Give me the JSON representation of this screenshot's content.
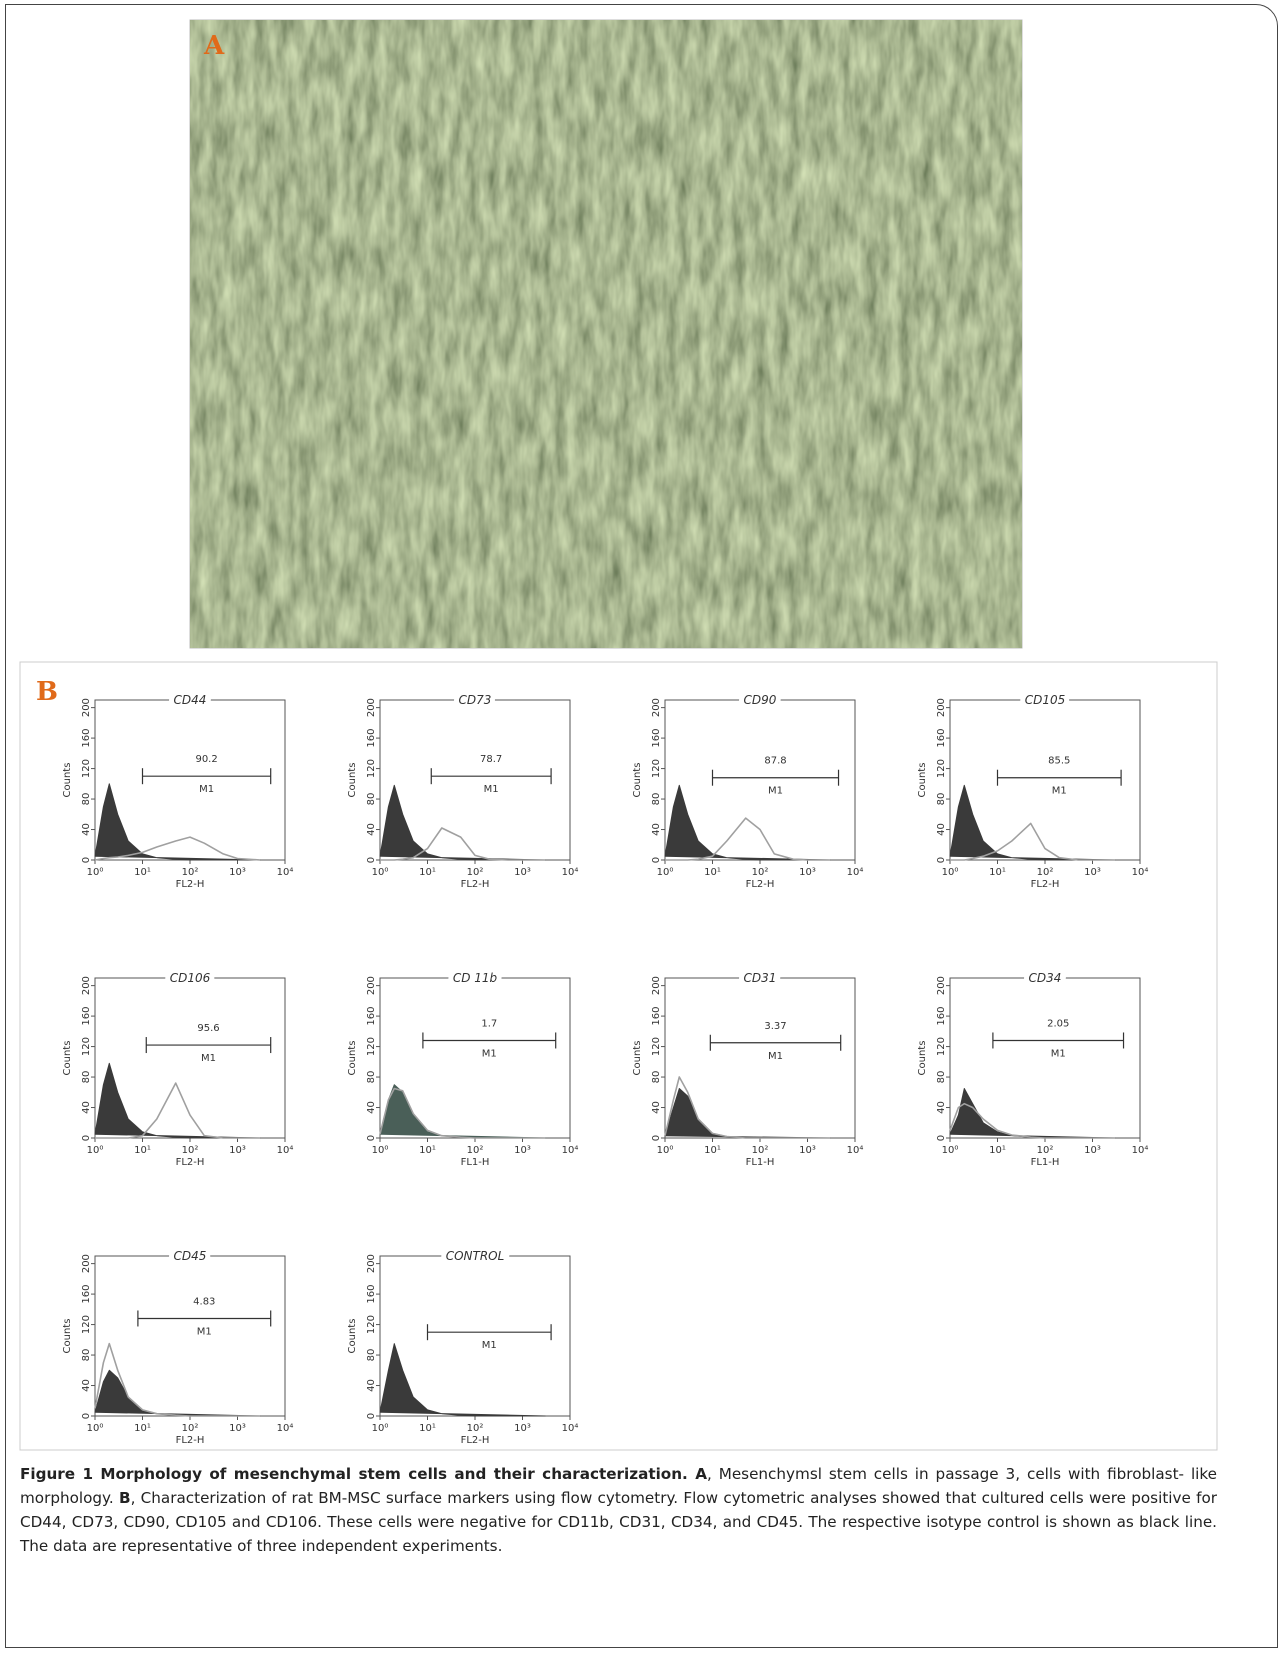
{
  "panel_a": {
    "label": "A"
  },
  "panel_b": {
    "label": "B"
  },
  "chart_data": [
    {
      "type": "line",
      "title": "CD44",
      "xlabel": "FL2-H",
      "ylabel": "Counts",
      "xscale": "log",
      "xlim": [
        1,
        10000
      ],
      "ylim": [
        0,
        210
      ],
      "xticks": [
        {
          "value": 1,
          "label": "10⁰"
        },
        {
          "value": 10,
          "label": "10¹"
        },
        {
          "value": 100,
          "label": "10²"
        },
        {
          "value": 1000,
          "label": "10³"
        },
        {
          "value": 10000,
          "label": "10⁴"
        }
      ],
      "yticks": [
        0,
        40,
        80,
        120,
        160,
        200
      ],
      "x": [
        1,
        1.5,
        2,
        3,
        5,
        10,
        20,
        50,
        100,
        200,
        500,
        1000,
        3000
      ],
      "series": [
        {
          "color": "#3a3a3a",
          "fill": true,
          "values": [
            5,
            70,
            100,
            60,
            25,
            8,
            3,
            1,
            0,
            0,
            0,
            0,
            0
          ]
        },
        {
          "color": "#a0a0a0",
          "fill": false,
          "values": [
            0,
            2,
            3,
            4,
            6,
            10,
            17,
            25,
            30,
            22,
            8,
            2,
            0
          ]
        }
      ],
      "gate": {
        "x": [
          10,
          5000
        ],
        "y": 110,
        "label": "M1",
        "value": 90.2
      }
    },
    {
      "type": "line",
      "title": "CD73",
      "xlabel": "FL2-H",
      "ylabel": "Counts",
      "xscale": "log",
      "xlim": [
        1,
        10000
      ],
      "ylim": [
        0,
        210
      ],
      "xticks": [
        {
          "value": 1,
          "label": "10⁰"
        },
        {
          "value": 10,
          "label": "10¹"
        },
        {
          "value": 100,
          "label": "10²"
        },
        {
          "value": 1000,
          "label": "10³"
        },
        {
          "value": 10000,
          "label": "10⁴"
        }
      ],
      "yticks": [
        0,
        40,
        80,
        120,
        160,
        200
      ],
      "x": [
        1,
        1.5,
        2,
        3,
        5,
        10,
        20,
        50,
        100,
        200,
        500,
        1000,
        3000
      ],
      "series": [
        {
          "color": "#3a3a3a",
          "fill": true,
          "values": [
            5,
            70,
            98,
            60,
            25,
            8,
            3,
            1,
            0,
            0,
            0,
            0,
            0
          ]
        },
        {
          "color": "#a0a0a0",
          "fill": false,
          "values": [
            0,
            0,
            0,
            1,
            3,
            15,
            42,
            30,
            6,
            1,
            0,
            0,
            0
          ]
        }
      ],
      "gate": {
        "x": [
          12,
          4000
        ],
        "y": 110,
        "label": "M1",
        "value": 78.7
      }
    },
    {
      "type": "line",
      "title": "CD90",
      "xlabel": "FL2-H",
      "ylabel": "Counts",
      "xscale": "log",
      "xlim": [
        1,
        10000
      ],
      "ylim": [
        0,
        210
      ],
      "xticks": [
        {
          "value": 1,
          "label": "10⁰"
        },
        {
          "value": 10,
          "label": "10¹"
        },
        {
          "value": 100,
          "label": "10²"
        },
        {
          "value": 1000,
          "label": "10³"
        },
        {
          "value": 10000,
          "label": "10⁴"
        }
      ],
      "yticks": [
        0,
        40,
        80,
        120,
        160,
        200
      ],
      "x": [
        1,
        1.5,
        2,
        3,
        5,
        10,
        20,
        50,
        100,
        200,
        500,
        1000,
        3000
      ],
      "series": [
        {
          "color": "#3a3a3a",
          "fill": true,
          "values": [
            5,
            70,
            98,
            60,
            25,
            8,
            3,
            1,
            0,
            0,
            0,
            0,
            0
          ]
        },
        {
          "color": "#a0a0a0",
          "fill": false,
          "values": [
            0,
            0,
            0,
            0,
            1,
            5,
            25,
            55,
            40,
            8,
            1,
            0,
            0
          ]
        }
      ],
      "gate": {
        "x": [
          10,
          4500
        ],
        "y": 108,
        "label": "M1",
        "value": 87.8
      }
    },
    {
      "type": "line",
      "title": "CD105",
      "xlabel": "FL2-H",
      "ylabel": "Counts",
      "xscale": "log",
      "xlim": [
        1,
        10000
      ],
      "ylim": [
        0,
        210
      ],
      "xticks": [
        {
          "value": 1,
          "label": "10⁰"
        },
        {
          "value": 10,
          "label": "10¹"
        },
        {
          "value": 100,
          "label": "10²"
        },
        {
          "value": 1000,
          "label": "10³"
        },
        {
          "value": 10000,
          "label": "10⁴"
        }
      ],
      "yticks": [
        0,
        40,
        80,
        120,
        160,
        200
      ],
      "x": [
        1,
        1.5,
        2,
        3,
        5,
        10,
        20,
        50,
        100,
        200,
        500,
        1000,
        3000
      ],
      "series": [
        {
          "color": "#3a3a3a",
          "fill": true,
          "values": [
            5,
            70,
            98,
            60,
            25,
            8,
            3,
            1,
            0,
            0,
            0,
            0,
            0
          ]
        },
        {
          "color": "#a0a0a0",
          "fill": false,
          "values": [
            0,
            0,
            0,
            2,
            5,
            12,
            25,
            48,
            15,
            3,
            0,
            0,
            0
          ]
        }
      ],
      "gate": {
        "x": [
          10,
          4000
        ],
        "y": 108,
        "label": "M1",
        "value": 85.5
      }
    },
    {
      "type": "line",
      "title": "CD106",
      "xlabel": "FL2-H",
      "ylabel": "Counts",
      "xscale": "log",
      "xlim": [
        1,
        10000
      ],
      "ylim": [
        0,
        210
      ],
      "xticks": [
        {
          "value": 1,
          "label": "10⁰"
        },
        {
          "value": 10,
          "label": "10¹"
        },
        {
          "value": 100,
          "label": "10²"
        },
        {
          "value": 1000,
          "label": "10³"
        },
        {
          "value": 10000,
          "label": "10⁴"
        }
      ],
      "yticks": [
        0,
        40,
        80,
        120,
        160,
        200
      ],
      "x": [
        1,
        1.5,
        2,
        3,
        5,
        10,
        20,
        50,
        100,
        200,
        500,
        1000,
        3000
      ],
      "series": [
        {
          "color": "#3a3a3a",
          "fill": true,
          "values": [
            5,
            70,
            98,
            60,
            25,
            8,
            3,
            1,
            0,
            0,
            0,
            0,
            0
          ]
        },
        {
          "color": "#a0a0a0",
          "fill": false,
          "values": [
            0,
            0,
            0,
            0,
            0,
            3,
            25,
            72,
            30,
            3,
            0,
            0,
            0
          ]
        }
      ],
      "gate": {
        "x": [
          12,
          5000
        ],
        "y": 122,
        "label": "M1",
        "value": 95.6
      }
    },
    {
      "type": "line",
      "title": "CD 11b",
      "xlabel": "FL1-H",
      "ylabel": "Counts",
      "xscale": "log",
      "xlim": [
        1,
        10000
      ],
      "ylim": [
        0,
        210
      ],
      "xticks": [
        {
          "value": 1,
          "label": "10⁰"
        },
        {
          "value": 10,
          "label": "10¹"
        },
        {
          "value": 100,
          "label": "10²"
        },
        {
          "value": 1000,
          "label": "10³"
        },
        {
          "value": 10000,
          "label": "10⁴"
        }
      ],
      "yticks": [
        0,
        40,
        80,
        120,
        160,
        200
      ],
      "x": [
        1,
        1.5,
        2,
        3,
        5,
        10,
        20,
        50,
        100,
        200,
        500,
        1000,
        3000
      ],
      "series": [
        {
          "color": "#4a5f58",
          "fill": true,
          "values": [
            5,
            50,
            70,
            60,
            30,
            8,
            3,
            1,
            0,
            0,
            0,
            0,
            0
          ]
        },
        {
          "color": "#a0a0a0",
          "fill": false,
          "values": [
            5,
            50,
            65,
            62,
            32,
            10,
            3,
            1,
            0,
            0,
            0,
            0,
            0
          ]
        }
      ],
      "gate": {
        "x": [
          8,
          5000
        ],
        "y": 128,
        "label": "M1",
        "value": 1.7
      }
    },
    {
      "type": "line",
      "title": "CD31",
      "xlabel": "FL1-H",
      "ylabel": "Counts",
      "xscale": "log",
      "xlim": [
        1,
        10000
      ],
      "ylim": [
        0,
        210
      ],
      "xticks": [
        {
          "value": 1,
          "label": "10⁰"
        },
        {
          "value": 10,
          "label": "10¹"
        },
        {
          "value": 100,
          "label": "10²"
        },
        {
          "value": 1000,
          "label": "10³"
        },
        {
          "value": 10000,
          "label": "10⁴"
        }
      ],
      "yticks": [
        0,
        40,
        80,
        120,
        160,
        200
      ],
      "x": [
        1,
        1.5,
        2,
        3,
        5,
        10,
        20,
        50,
        100,
        200,
        500,
        1000,
        3000
      ],
      "series": [
        {
          "color": "#3a3a3a",
          "fill": true,
          "values": [
            3,
            40,
            65,
            55,
            25,
            6,
            2,
            0,
            0,
            0,
            0,
            0,
            0
          ]
        },
        {
          "color": "#a0a0a0",
          "fill": false,
          "values": [
            3,
            50,
            80,
            60,
            25,
            6,
            2,
            0,
            0,
            0,
            0,
            0,
            0
          ]
        }
      ],
      "gate": {
        "x": [
          9,
          5000
        ],
        "y": 125,
        "label": "M1",
        "value": 3.37
      }
    },
    {
      "type": "line",
      "title": "CD34",
      "xlabel": "FL1-H",
      "ylabel": "Counts",
      "xscale": "log",
      "xlim": [
        1,
        10000
      ],
      "ylim": [
        0,
        210
      ],
      "xticks": [
        {
          "value": 1,
          "label": "10⁰"
        },
        {
          "value": 10,
          "label": "10¹"
        },
        {
          "value": 100,
          "label": "10²"
        },
        {
          "value": 1000,
          "label": "10³"
        },
        {
          "value": 10000,
          "label": "10⁴"
        }
      ],
      "yticks": [
        0,
        40,
        80,
        120,
        160,
        200
      ],
      "x": [
        1,
        1.5,
        2,
        3,
        5,
        10,
        20,
        50,
        100,
        200,
        500,
        1000,
        3000
      ],
      "series": [
        {
          "color": "#3a3a3a",
          "fill": true,
          "values": [
            5,
            30,
            65,
            45,
            20,
            8,
            3,
            1,
            0,
            0,
            0,
            0,
            0
          ]
        },
        {
          "color": "#a0a0a0",
          "fill": false,
          "values": [
            10,
            40,
            45,
            40,
            25,
            10,
            4,
            1,
            0,
            0,
            0,
            0,
            0
          ]
        }
      ],
      "gate": {
        "x": [
          8,
          4500
        ],
        "y": 128,
        "label": "M1",
        "value": 2.05
      }
    },
    {
      "type": "line",
      "title": "CD45",
      "xlabel": "FL2-H",
      "ylabel": "Counts",
      "xscale": "log",
      "xlim": [
        1,
        10000
      ],
      "ylim": [
        0,
        210
      ],
      "xticks": [
        {
          "value": 1,
          "label": "10⁰"
        },
        {
          "value": 10,
          "label": "10¹"
        },
        {
          "value": 100,
          "label": "10²"
        },
        {
          "value": 1000,
          "label": "10³"
        },
        {
          "value": 10000,
          "label": "10⁴"
        }
      ],
      "yticks": [
        0,
        40,
        80,
        120,
        160,
        200
      ],
      "x": [
        1,
        1.5,
        2,
        3,
        5,
        10,
        20,
        50,
        100,
        200,
        500,
        1000,
        3000
      ],
      "series": [
        {
          "color": "#3a3a3a",
          "fill": true,
          "values": [
            5,
            45,
            60,
            50,
            25,
            8,
            3,
            1,
            0,
            0,
            0,
            0,
            0
          ]
        },
        {
          "color": "#a0a0a0",
          "fill": false,
          "values": [
            10,
            70,
            95,
            60,
            25,
            8,
            3,
            1,
            0,
            0,
            0,
            0,
            0
          ]
        }
      ],
      "gate": {
        "x": [
          8,
          5000
        ],
        "y": 128,
        "label": "M1",
        "value": 4.83
      }
    },
    {
      "type": "line",
      "title": "CONTROL",
      "xlabel": "FL2-H",
      "ylabel": "Counts",
      "xscale": "log",
      "xlim": [
        1,
        10000
      ],
      "ylim": [
        0,
        210
      ],
      "xticks": [
        {
          "value": 1,
          "label": "10⁰"
        },
        {
          "value": 10,
          "label": "10¹"
        },
        {
          "value": 100,
          "label": "10²"
        },
        {
          "value": 1000,
          "label": "10³"
        },
        {
          "value": 10000,
          "label": "10⁴"
        }
      ],
      "yticks": [
        0,
        40,
        80,
        120,
        160,
        200
      ],
      "x": [
        1,
        1.5,
        2,
        3,
        5,
        10,
        20,
        50,
        100,
        200,
        500,
        1000,
        3000
      ],
      "series": [
        {
          "color": "#3a3a3a",
          "fill": true,
          "values": [
            5,
            60,
            95,
            60,
            25,
            8,
            3,
            1,
            0,
            0,
            0,
            0,
            0
          ]
        }
      ],
      "gate": {
        "x": [
          10,
          4000
        ],
        "y": 110,
        "label": "M1"
      }
    }
  ],
  "caption": [
    {
      "text": "Figure 1 Morphology of mesenchymal stem cells and their characterization. A",
      "bold": true
    },
    {
      "text": ", Mesenchymsl stem cells in passage 3, cells with fibroblast- like morphology. ",
      "bold": false
    },
    {
      "text": "B",
      "bold": true
    },
    {
      "text": ", Characterization of rat BM-MSC surface markers using flow cytometry. Flow cytometric analyses showed that cultured cells were positive for CD44, CD73, CD90, CD105 and CD106. These cells were negative for CD11b, CD31, CD34, and CD45. The respective isotype control is shown as black line. The data are representative of three independent experiments.",
      "bold": false
    }
  ]
}
